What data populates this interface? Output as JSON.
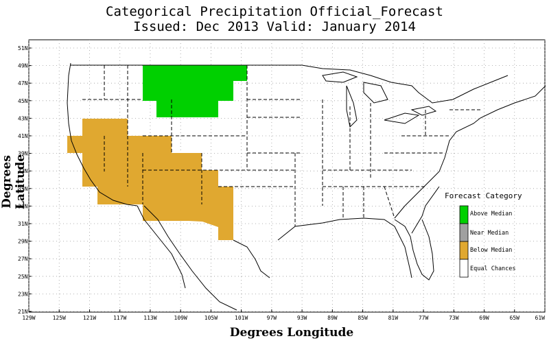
{
  "title": {
    "line1": "Categorical Precipitation Official_Forecast",
    "line2": "Issued: Dec 2013 Valid: January 2014"
  },
  "axes": {
    "xlabel": "Degrees Longitude",
    "ylabel": "Degrees Latitude",
    "lat_ticks": [
      "51N",
      "49N",
      "47N",
      "45N",
      "43N",
      "41N",
      "39N",
      "37N",
      "35N",
      "33N",
      "31N",
      "29N",
      "27N",
      "25N",
      "23N",
      "21N"
    ],
    "lon_ticks": [
      "129W",
      "125W",
      "121W",
      "117W",
      "113W",
      "109W",
      "105W",
      "101W",
      "97W",
      "93W",
      "89W",
      "85W",
      "81W",
      "77W",
      "73W",
      "69W",
      "65W",
      "61W"
    ],
    "lat_range": [
      21,
      52
    ],
    "lon_range": [
      -129,
      -61
    ]
  },
  "legend": {
    "title": "Forecast Category",
    "items": [
      {
        "label": "Above Median",
        "color": "#00d000"
      },
      {
        "label": "Near Median",
        "color": "#a0a0a0"
      },
      {
        "label": "Below Median",
        "color": "#e0a830"
      },
      {
        "label": "Equal Chances",
        "color": "#ffffff"
      }
    ]
  },
  "forecast_regions": [
    {
      "category": "Above Median",
      "region": "Montana / northern Wyoming / western North Dakota"
    },
    {
      "category": "Below Median",
      "region": "California / Nevada / Arizona / New Mexico / western Texas / Utah"
    }
  ]
}
